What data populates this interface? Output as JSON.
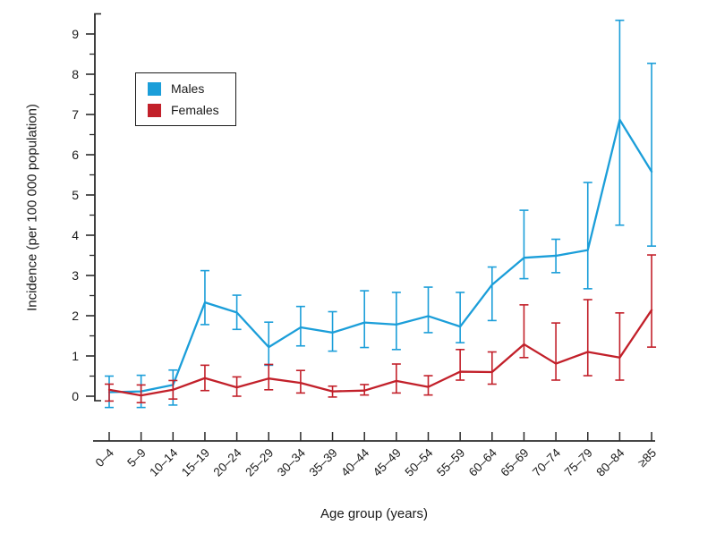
{
  "figure": {
    "y_axis_title": "Incidence (per 100 000 population)",
    "x_axis_title": "Age group (years)"
  },
  "legend": {
    "items": [
      {
        "label": "Males"
      },
      {
        "label": "Females"
      }
    ]
  },
  "colors": {
    "males": "#1b9ed9",
    "females": "#c2202a",
    "axis": "#2b2b2b",
    "text": "#1a1a1a"
  },
  "chart_data": {
    "type": "line",
    "title": "",
    "xlabel": "Age group (years)",
    "ylabel": "Incidence (per 100 000 population)",
    "categories": [
      "0–4",
      "5–9",
      "10–14",
      "15–19",
      "20–24",
      "25–29",
      "30–34",
      "35–39",
      "40–44",
      "45–49",
      "50–54",
      "55–59",
      "60–64",
      "65–69",
      "70–74",
      "75–79",
      "80–84",
      "≥85"
    ],
    "ylim": [
      0,
      9
    ],
    "yticks": [
      0,
      1,
      2,
      3,
      4,
      5,
      6,
      7,
      8,
      9
    ],
    "ytick_labels": [
      "0",
      "1",
      "2",
      "3",
      "4",
      "5",
      "6",
      "7",
      "8",
      "9"
    ],
    "minor_ytick_step": 0.5,
    "grid": false,
    "error_bars": true,
    "legend_position": "upper-left-inside",
    "series": [
      {
        "name": "Males",
        "color": "#1b9ed9",
        "values": [
          0.1,
          0.12,
          0.28,
          2.33,
          2.08,
          1.22,
          1.71,
          1.58,
          1.83,
          1.78,
          1.99,
          1.73,
          2.77,
          3.44,
          3.49,
          3.63,
          6.87,
          5.58
        ],
        "ci_low": [
          -0.28,
          -0.28,
          -0.22,
          1.78,
          1.66,
          0.77,
          1.25,
          1.12,
          1.21,
          1.16,
          1.58,
          1.33,
          1.88,
          2.92,
          3.07,
          2.67,
          4.25,
          3.73
        ],
        "ci_high": [
          0.5,
          0.52,
          0.65,
          3.12,
          2.51,
          1.84,
          2.23,
          2.1,
          2.62,
          2.58,
          2.71,
          2.58,
          3.21,
          4.62,
          3.9,
          5.31,
          9.34,
          8.27
        ]
      },
      {
        "name": "Females",
        "color": "#c2202a",
        "values": [
          0.16,
          0.02,
          0.16,
          0.45,
          0.22,
          0.44,
          0.33,
          0.12,
          0.14,
          0.38,
          0.23,
          0.61,
          0.6,
          1.29,
          0.81,
          1.1,
          0.96,
          2.14
        ],
        "ci_low": [
          -0.12,
          -0.16,
          -0.07,
          0.14,
          0.0,
          0.16,
          0.08,
          -0.02,
          0.03,
          0.08,
          0.03,
          0.4,
          0.3,
          0.96,
          0.4,
          0.51,
          0.4,
          1.22
        ],
        "ci_high": [
          0.3,
          0.28,
          0.39,
          0.77,
          0.48,
          0.79,
          0.64,
          0.25,
          0.29,
          0.8,
          0.51,
          1.16,
          1.1,
          2.27,
          1.82,
          2.4,
          2.07,
          3.51
        ]
      }
    ]
  }
}
